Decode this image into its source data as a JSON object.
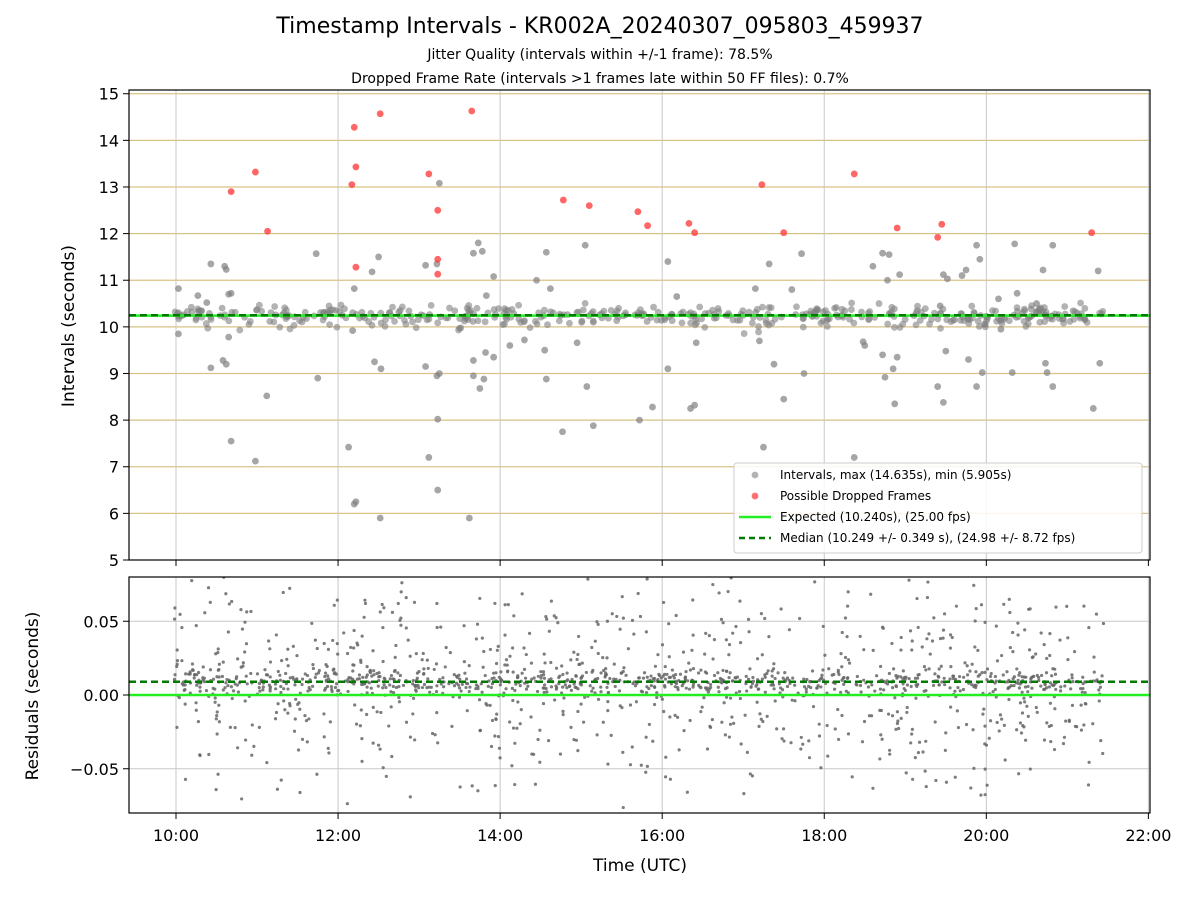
{
  "figure": {
    "title": "Timestamp Intervals - KR002A_20240307_095803_459937",
    "subtitle_jitter": "Jitter Quality (intervals within +/-1 frame): 78.5%",
    "subtitle_dropped": "Dropped Frame Rate (intervals >1 frames late within 50 FF files): 0.7%"
  },
  "colors": {
    "intervals": "#808080",
    "dropped": "#ff3333",
    "expected": "#22ee22",
    "median": "#007a00",
    "gridline_y": "#d9c284",
    "gridline_x": "#c8c8c8",
    "residual_points": "#666666"
  },
  "chart_data": [
    {
      "type": "scatter",
      "panel": "top",
      "xlabel": "",
      "ylabel": "Intervals (seconds)",
      "xlim": [
        9.42,
        22.02
      ],
      "ylim": [
        5,
        15.08
      ],
      "x_unit": "hours UTC",
      "xticks": [
        10,
        12,
        14,
        16,
        18,
        20,
        22
      ],
      "yticks": [
        5,
        6,
        7,
        8,
        9,
        10,
        11,
        12,
        13,
        14,
        15
      ],
      "ytick_labels": [
        "5",
        "6",
        "7",
        "8",
        "9",
        "10",
        "11",
        "12",
        "13",
        "14",
        "15"
      ],
      "grid": true,
      "legend_position": "lower-right",
      "legend": [
        {
          "label": "Intervals, max (14.635s), min (5.905s)",
          "kind": "marker-gray"
        },
        {
          "label": "Possible Dropped Frames",
          "kind": "marker-red"
        },
        {
          "label": "Expected (10.240s), (25.00 fps)",
          "kind": "line-solid"
        },
        {
          "label": "Median (10.249 +/- 0.349 s), (24.98 +/- 8.72 fps)",
          "kind": "line-dashed"
        }
      ],
      "reference_lines": {
        "expected": 10.24,
        "median": 10.249
      },
      "data_span": [
        9.98,
        21.45
      ],
      "core_band": {
        "center": 10.24,
        "spread": 0.12,
        "count": 450
      },
      "interval_outliers": [
        [
          10.03,
          10.82
        ],
        [
          10.03,
          9.85
        ],
        [
          10.27,
          10.67
        ],
        [
          10.38,
          10.52
        ],
        [
          10.43,
          11.35
        ],
        [
          10.43,
          9.12
        ],
        [
          10.58,
          9.28
        ],
        [
          10.6,
          11.3
        ],
        [
          10.62,
          9.2
        ],
        [
          10.62,
          11.23
        ],
        [
          10.65,
          9.78
        ],
        [
          10.65,
          10.7
        ],
        [
          10.68,
          10.72
        ],
        [
          10.68,
          7.55
        ],
        [
          10.98,
          7.12
        ],
        [
          11.12,
          8.52
        ],
        [
          11.73,
          11.57
        ],
        [
          11.75,
          8.9
        ],
        [
          12.13,
          7.42
        ],
        [
          12.18,
          9.92
        ],
        [
          12.2,
          10.82
        ],
        [
          12.2,
          6.2
        ],
        [
          12.22,
          6.25
        ],
        [
          12.42,
          11.18
        ],
        [
          12.45,
          9.25
        ],
        [
          12.5,
          11.5
        ],
        [
          12.53,
          9.1
        ],
        [
          12.52,
          5.9
        ],
        [
          13.08,
          9.15
        ],
        [
          13.08,
          11.32
        ],
        [
          13.12,
          7.2
        ],
        [
          13.22,
          11.35
        ],
        [
          13.22,
          8.95
        ],
        [
          13.23,
          8.02
        ],
        [
          13.23,
          6.5
        ],
        [
          13.25,
          13.08
        ],
        [
          13.25,
          9.0
        ],
        [
          13.62,
          5.9
        ],
        [
          13.67,
          11.58
        ],
        [
          13.67,
          9.28
        ],
        [
          13.67,
          8.95
        ],
        [
          13.73,
          11.8
        ],
        [
          13.75,
          8.68
        ],
        [
          13.78,
          11.62
        ],
        [
          13.8,
          8.88
        ],
        [
          13.82,
          9.45
        ],
        [
          13.83,
          10.67
        ],
        [
          13.92,
          9.35
        ],
        [
          13.92,
          11.08
        ],
        [
          14.12,
          9.6
        ],
        [
          14.3,
          9.72
        ],
        [
          14.45,
          11.0
        ],
        [
          14.55,
          9.5
        ],
        [
          14.57,
          11.6
        ],
        [
          14.57,
          8.88
        ],
        [
          14.62,
          10.82
        ],
        [
          14.77,
          7.75
        ],
        [
          14.95,
          9.66
        ],
        [
          15.05,
          11.75
        ],
        [
          15.07,
          8.72
        ],
        [
          15.15,
          7.88
        ],
        [
          15.72,
          8.0
        ],
        [
          15.88,
          8.28
        ],
        [
          16.07,
          9.1
        ],
        [
          16.07,
          11.4
        ],
        [
          16.18,
          10.65
        ],
        [
          16.35,
          8.25
        ],
        [
          16.4,
          8.32
        ],
        [
          16.42,
          9.66
        ],
        [
          17.15,
          10.82
        ],
        [
          17.2,
          9.7
        ],
        [
          17.25,
          7.42
        ],
        [
          17.32,
          11.35
        ],
        [
          17.38,
          9.2
        ],
        [
          17.5,
          8.45
        ],
        [
          17.6,
          10.8
        ],
        [
          17.72,
          11.57
        ],
        [
          17.75,
          9.0
        ],
        [
          18.37,
          7.2
        ],
        [
          18.48,
          9.68
        ],
        [
          18.5,
          9.6
        ],
        [
          18.6,
          11.3
        ],
        [
          18.72,
          11.58
        ],
        [
          18.72,
          9.4
        ],
        [
          18.75,
          8.92
        ],
        [
          18.78,
          11.0
        ],
        [
          18.8,
          11.55
        ],
        [
          18.85,
          9.1
        ],
        [
          18.87,
          8.35
        ],
        [
          18.9,
          9.35
        ],
        [
          18.93,
          11.12
        ],
        [
          19.4,
          8.72
        ],
        [
          19.43,
          10.45
        ],
        [
          19.47,
          11.12
        ],
        [
          19.47,
          8.38
        ],
        [
          19.5,
          9.48
        ],
        [
          19.52,
          11.03
        ],
        [
          19.7,
          11.1
        ],
        [
          19.75,
          11.22
        ],
        [
          19.78,
          9.3
        ],
        [
          19.88,
          8.72
        ],
        [
          19.88,
          11.75
        ],
        [
          19.92,
          11.45
        ],
        [
          19.95,
          9.02
        ],
        [
          20.15,
          10.6
        ],
        [
          20.18,
          9.95
        ],
        [
          20.32,
          9.02
        ],
        [
          20.35,
          11.78
        ],
        [
          20.38,
          10.72
        ],
        [
          20.62,
          10.5
        ],
        [
          20.7,
          11.22
        ],
        [
          20.73,
          9.22
        ],
        [
          20.75,
          9.02
        ],
        [
          20.82,
          8.72
        ],
        [
          20.82,
          11.75
        ],
        [
          21.32,
          8.25
        ],
        [
          21.38,
          11.2
        ],
        [
          21.4,
          9.22
        ]
      ],
      "dropped_frames": [
        [
          10.68,
          12.9
        ],
        [
          10.98,
          13.32
        ],
        [
          11.13,
          12.05
        ],
        [
          12.17,
          13.05
        ],
        [
          12.2,
          14.28
        ],
        [
          12.22,
          13.43
        ],
        [
          12.22,
          11.28
        ],
        [
          12.52,
          14.57
        ],
        [
          13.12,
          13.28
        ],
        [
          13.23,
          12.5
        ],
        [
          13.23,
          11.45
        ],
        [
          13.23,
          11.13
        ],
        [
          13.65,
          14.63
        ],
        [
          14.78,
          12.72
        ],
        [
          15.1,
          12.6
        ],
        [
          15.7,
          12.47
        ],
        [
          15.82,
          12.17
        ],
        [
          16.33,
          12.22
        ],
        [
          16.4,
          12.02
        ],
        [
          17.23,
          13.05
        ],
        [
          17.5,
          12.02
        ],
        [
          18.37,
          13.28
        ],
        [
          18.9,
          12.12
        ],
        [
          19.4,
          11.92
        ],
        [
          19.45,
          12.2
        ],
        [
          21.3,
          12.02
        ]
      ]
    },
    {
      "type": "scatter",
      "panel": "bottom",
      "xlabel": "Time (UTC)",
      "ylabel": "Residuals (seconds)",
      "xlim": [
        9.42,
        22.02
      ],
      "ylim": [
        -0.08,
        0.08
      ],
      "x_unit": "hours UTC",
      "xticks": [
        10,
        12,
        14,
        16,
        18,
        20,
        22
      ],
      "xtick_labels": [
        "10:00",
        "12:00",
        "14:00",
        "16:00",
        "18:00",
        "20:00",
        "22:00"
      ],
      "yticks": [
        -0.05,
        0.0,
        0.05
      ],
      "ytick_labels": [
        "−0.05",
        "0.00",
        "0.05"
      ],
      "grid": true,
      "reference_lines": {
        "expected": 0.0,
        "median": 0.009
      },
      "data_span": [
        9.98,
        21.45
      ],
      "point_count": 1500
    }
  ]
}
